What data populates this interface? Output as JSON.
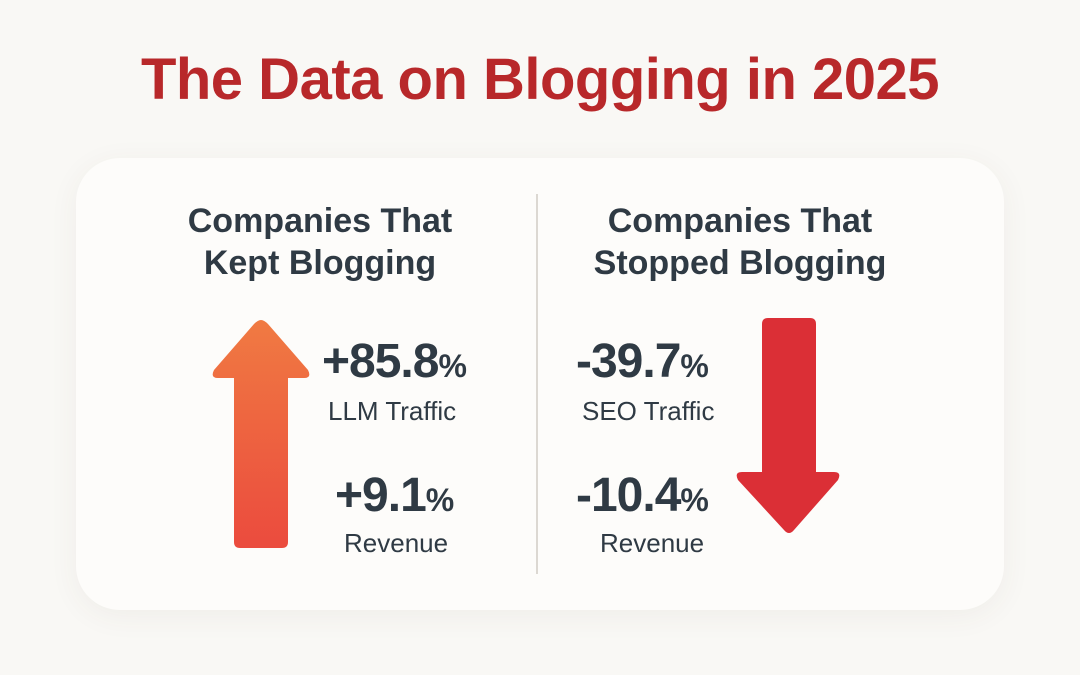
{
  "title": "The Data on Blogging in 2025",
  "left": {
    "heading_line1": "Companies That",
    "heading_line2": "Kept Blogging",
    "stats": [
      {
        "value": "+85.8",
        "unit": "%",
        "label": "LLM Traffic"
      },
      {
        "value": "+9.1",
        "unit": "%",
        "label": "Revenue"
      }
    ],
    "arrow_icon": "arrow-up-icon"
  },
  "right": {
    "heading_line1": "Companies That",
    "heading_line2": "Stopped Blogging",
    "stats": [
      {
        "value": "-39.7",
        "unit": "%",
        "label": "SEO Traffic"
      },
      {
        "value": "-10.4",
        "unit": "%",
        "label": "Revenue"
      }
    ],
    "arrow_icon": "arrow-down-icon"
  },
  "colors": {
    "title": "#b8282a",
    "text": "#2f3a44",
    "up_arrow_top": "#f07a42",
    "up_arrow_bottom": "#eb4b3e",
    "down_arrow": "#db2f36",
    "background": "#f9f8f5"
  }
}
